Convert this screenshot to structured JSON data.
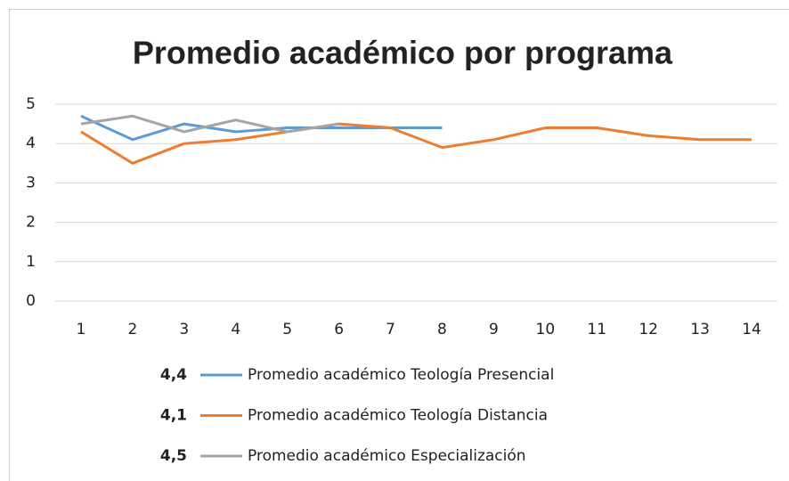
{
  "chart_data": {
    "type": "line",
    "title": "Promedio académico por programa",
    "categories": [
      "1",
      "2",
      "3",
      "4",
      "5",
      "6",
      "7",
      "8",
      "9",
      "10",
      "11",
      "12",
      "13",
      "14"
    ],
    "series": [
      {
        "name": "Promedio académico Teología Presencial",
        "summary": "4,4",
        "color": "#5b9bd5",
        "values": [
          4.7,
          4.1,
          4.5,
          4.3,
          4.4,
          4.4,
          4.4,
          4.4,
          null,
          null,
          null,
          null,
          null,
          null
        ]
      },
      {
        "name": "Promedio académico Teología Distancia",
        "summary": "4,1",
        "color": "#ed7d31",
        "values": [
          4.3,
          3.5,
          4.0,
          4.1,
          4.3,
          4.5,
          4.4,
          3.9,
          4.1,
          4.4,
          4.4,
          4.2,
          4.1,
          4.1
        ]
      },
      {
        "name": "Promedio académico Especialización",
        "summary": "4,5",
        "color": "#a5a5a5",
        "values": [
          4.5,
          4.7,
          4.3,
          4.6,
          4.3,
          4.5,
          null,
          null,
          null,
          null,
          null,
          null,
          null,
          null
        ]
      }
    ],
    "ylim": [
      0,
      5
    ],
    "yticks": [
      0,
      1,
      2,
      3,
      4,
      5
    ],
    "grid": true
  }
}
